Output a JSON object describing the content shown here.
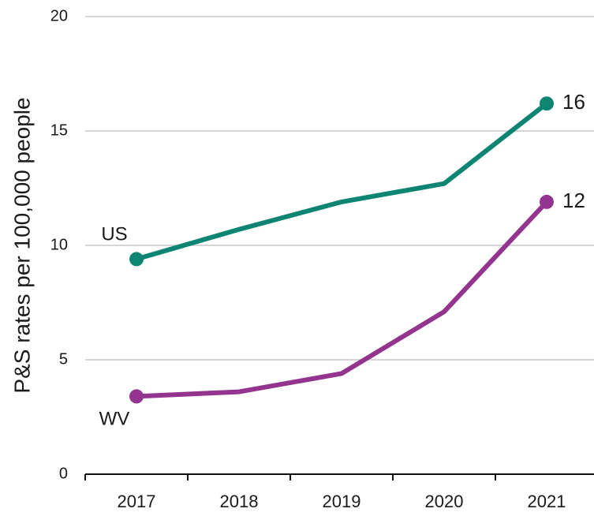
{
  "chart_data": {
    "type": "line",
    "y_label": "P&S rates per 100,000 people",
    "categories": [
      "2017",
      "2018",
      "2019",
      "2020",
      "2021"
    ],
    "series": [
      {
        "name": "US",
        "color": "#0e8573",
        "values": [
          9.4,
          10.7,
          11.9,
          12.7,
          16.2
        ],
        "value_labels": [
          null,
          null,
          null,
          null,
          "16"
        ]
      },
      {
        "name": "WV",
        "color": "#93358f",
        "values": [
          3.4,
          3.6,
          4.4,
          7.1,
          11.9
        ],
        "value_labels": [
          null,
          null,
          null,
          null,
          "12"
        ]
      }
    ],
    "ylim": [
      0,
      20
    ],
    "yticks": [
      0,
      5,
      10,
      15,
      20
    ],
    "grid": true
  }
}
